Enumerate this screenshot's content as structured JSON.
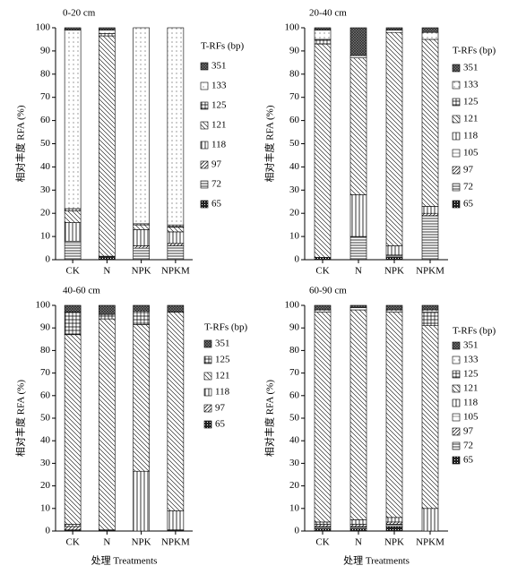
{
  "chart_data": [
    {
      "type": "stacked_bar",
      "title": "0-20 cm",
      "ylabel": "相对丰度 RFA (%)",
      "legend_title": "T-RFs (bp)",
      "categories": [
        "CK",
        "N",
        "NPK",
        "NPKM"
      ],
      "ylim": [
        0,
        100
      ],
      "yticks": [
        0,
        10,
        20,
        30,
        40,
        50,
        60,
        70,
        80,
        90,
        100
      ],
      "series": [
        {
          "name": "65",
          "color": "url(#p65)",
          "values": [
            0,
            1.5,
            0,
            0
          ]
        },
        {
          "name": "72",
          "color": "url(#p72)",
          "values": [
            8,
            0,
            5,
            6
          ]
        },
        {
          "name": "97",
          "color": "url(#p97)",
          "values": [
            0,
            0,
            1,
            1
          ]
        },
        {
          "name": "118",
          "color": "url(#p118)",
          "values": [
            8,
            0,
            7,
            5
          ]
        },
        {
          "name": "121",
          "color": "url(#p121)",
          "values": [
            5,
            95,
            2,
            2
          ]
        },
        {
          "name": "125",
          "color": "url(#p125)",
          "values": [
            1,
            1,
            0.5,
            1
          ]
        },
        {
          "name": "133",
          "color": "url(#p133)",
          "values": [
            77,
            1.5,
            84.5,
            85
          ]
        },
        {
          "name": "351",
          "color": "url(#p351)",
          "values": [
            1,
            1,
            0,
            0
          ]
        }
      ]
    },
    {
      "type": "stacked_bar",
      "title": "20-40 cm",
      "ylabel": "相对丰度 RFA (%)",
      "legend_title": "T-RFs (bp)",
      "categories": [
        "CK",
        "N",
        "NPK",
        "NPKM"
      ],
      "ylim": [
        0,
        100
      ],
      "yticks": [
        0,
        10,
        20,
        30,
        40,
        50,
        60,
        70,
        80,
        90,
        100
      ],
      "series": [
        {
          "name": "65",
          "color": "url(#p65)",
          "values": [
            1,
            0,
            1,
            0
          ]
        },
        {
          "name": "72",
          "color": "url(#p72)",
          "values": [
            0,
            10,
            1,
            19
          ]
        },
        {
          "name": "97",
          "color": "url(#p97)",
          "values": [
            0,
            0,
            0,
            1
          ]
        },
        {
          "name": "105",
          "color": "url(#p105)",
          "values": [
            0,
            0,
            0,
            0
          ]
        },
        {
          "name": "118",
          "color": "url(#p118)",
          "values": [
            0,
            18,
            4,
            3
          ]
        },
        {
          "name": "121",
          "color": "url(#p121)",
          "values": [
            92,
            59,
            92,
            72
          ]
        },
        {
          "name": "125",
          "color": "url(#p125)",
          "values": [
            2,
            0,
            0,
            0
          ]
        },
        {
          "name": "133",
          "color": "url(#p133)",
          "values": [
            4,
            1,
            1,
            3
          ]
        },
        {
          "name": "351",
          "color": "url(#p351)",
          "values": [
            1,
            12,
            1,
            2
          ]
        }
      ]
    },
    {
      "type": "stacked_bar",
      "title": "40-60 cm",
      "ylabel": "相对丰度 RFA (%)",
      "legend_title": "T-RFs (bp)",
      "xlabel": "处理 Treatments",
      "categories": [
        "CK",
        "N",
        "NPK",
        "NPKM"
      ],
      "ylim": [
        0,
        100
      ],
      "yticks": [
        0,
        10,
        20,
        30,
        40,
        50,
        60,
        70,
        80,
        90,
        100
      ],
      "series": [
        {
          "name": "65",
          "color": "url(#p65)",
          "values": [
            0.5,
            0.5,
            0,
            0.5
          ]
        },
        {
          "name": "97",
          "color": "url(#p97)",
          "values": [
            1.5,
            0,
            0,
            0
          ]
        },
        {
          "name": "118",
          "color": "url(#p118)",
          "values": [
            1,
            0,
            26.5,
            8.5
          ]
        },
        {
          "name": "121",
          "color": "url(#p121)",
          "values": [
            84,
            93.5,
            65,
            88
          ]
        },
        {
          "name": "125",
          "color": "url(#p125)",
          "values": [
            10,
            2,
            6,
            0
          ]
        },
        {
          "name": "351",
          "color": "url(#p351)",
          "values": [
            3,
            4,
            2.5,
            3
          ]
        }
      ]
    },
    {
      "type": "stacked_bar",
      "title": "60-90 cm",
      "ylabel": "相对丰度 RFA (%)",
      "legend_title": "T-RFs (bp)",
      "xlabel": "处理 Treatments",
      "categories": [
        "CK",
        "N",
        "NPK",
        "NPKM"
      ],
      "ylim": [
        0,
        100
      ],
      "yticks": [
        0,
        10,
        20,
        30,
        40,
        50,
        60,
        70,
        80,
        90,
        100
      ],
      "series": [
        {
          "name": "65",
          "color": "url(#p65)",
          "values": [
            1,
            1,
            2,
            0
          ]
        },
        {
          "name": "72",
          "color": "url(#p72)",
          "values": [
            1,
            1,
            1,
            0
          ]
        },
        {
          "name": "97",
          "color": "url(#p97)",
          "values": [
            1,
            1,
            1,
            0
          ]
        },
        {
          "name": "105",
          "color": "url(#p105)",
          "values": [
            0,
            0,
            0,
            0
          ]
        },
        {
          "name": "118",
          "color": "url(#p118)",
          "values": [
            1,
            2,
            2,
            10
          ]
        },
        {
          "name": "121",
          "color": "url(#p121)",
          "values": [
            93,
            93,
            91,
            81
          ]
        },
        {
          "name": "125",
          "color": "url(#p125)",
          "values": [
            0,
            0,
            0,
            6
          ]
        },
        {
          "name": "133",
          "color": "url(#p133)",
          "values": [
            1,
            1,
            1,
            1
          ]
        },
        {
          "name": "351",
          "color": "url(#p351)",
          "values": [
            2,
            1,
            2,
            2
          ]
        }
      ]
    }
  ]
}
